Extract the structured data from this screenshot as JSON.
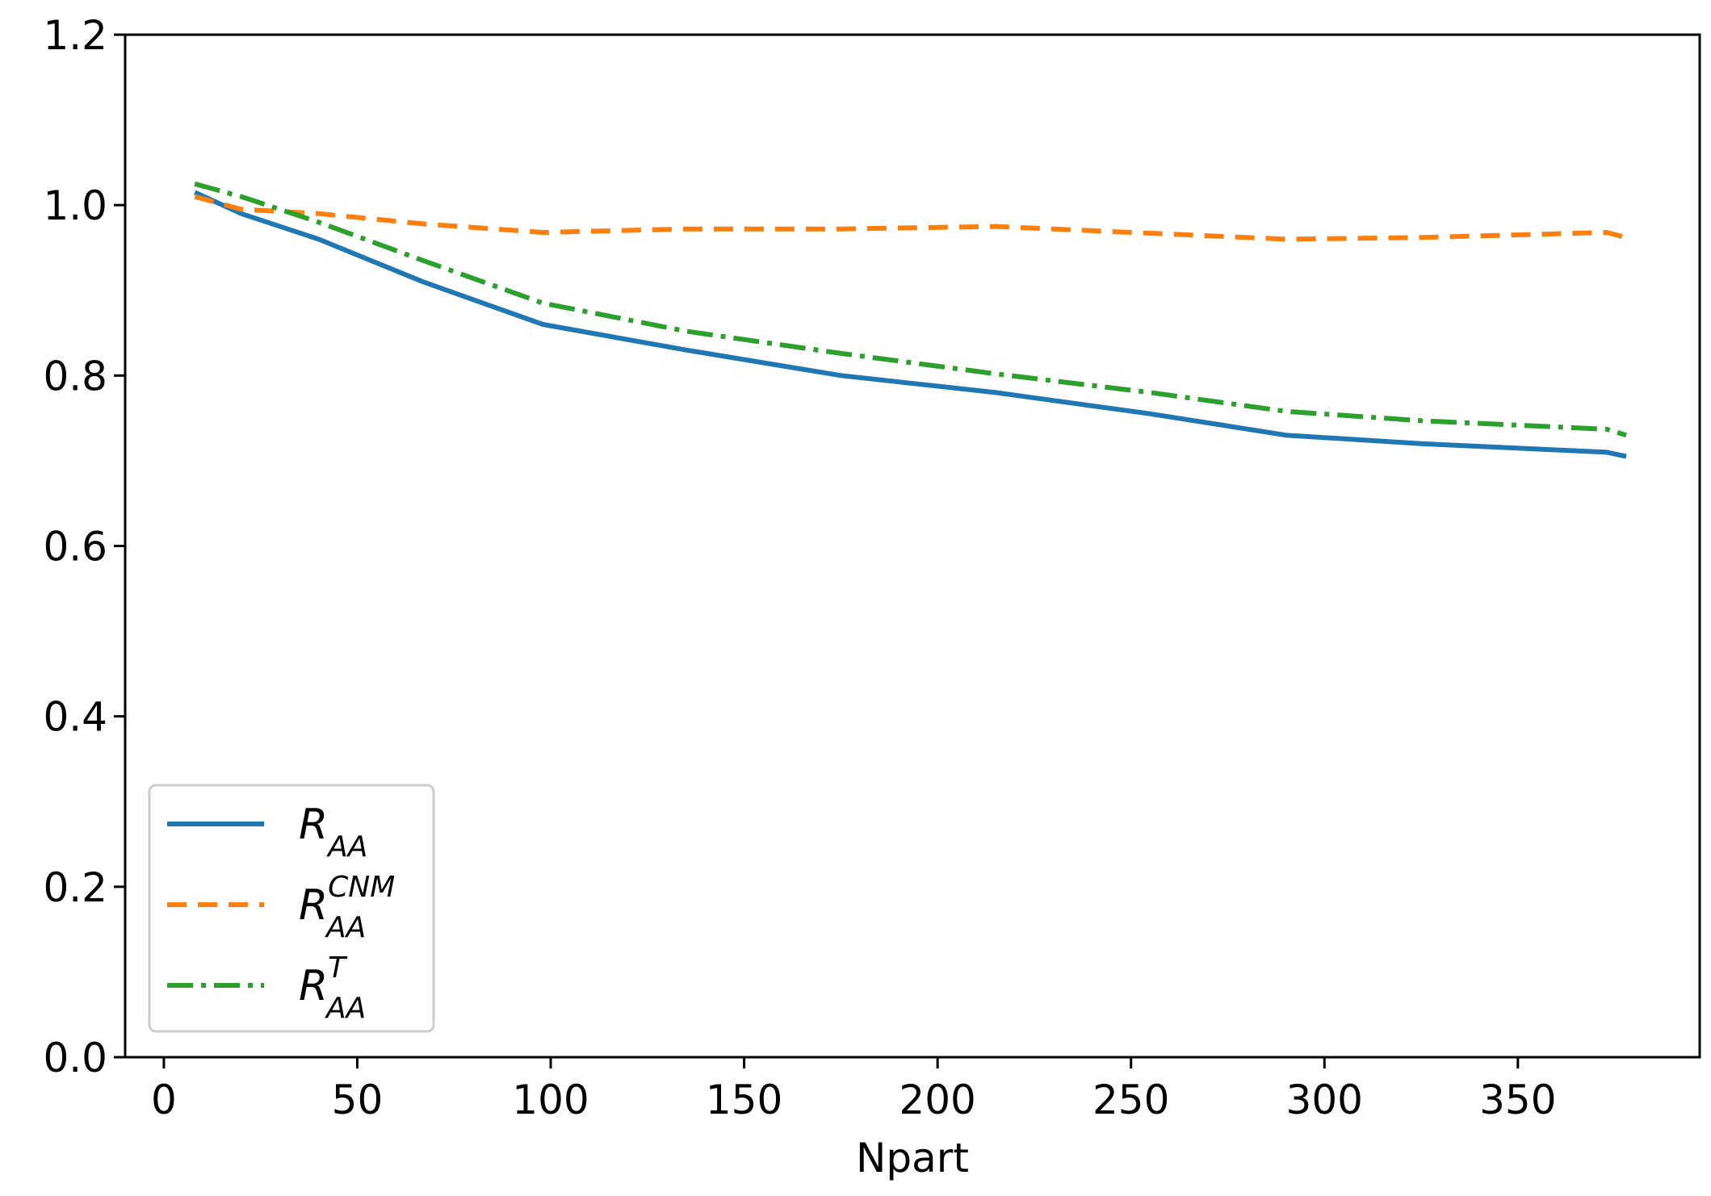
{
  "chart_data": {
    "type": "line",
    "title": "",
    "xlabel": "Npart",
    "ylabel": "",
    "xlim": [
      -10,
      397
    ],
    "ylim": [
      0.0,
      1.2
    ],
    "xticks": [
      0,
      50,
      100,
      150,
      200,
      250,
      300,
      350
    ],
    "xtick_labels": [
      "0",
      "50",
      "100",
      "150",
      "200",
      "250",
      "300",
      "350"
    ],
    "yticks": [
      0.0,
      0.2,
      0.4,
      0.6,
      0.8,
      1.0,
      1.2
    ],
    "ytick_labels": [
      "0.0",
      "0.2",
      "0.4",
      "0.6",
      "0.8",
      "1.0",
      "1.2"
    ],
    "grid": false,
    "legend_position": "lower-left",
    "series": [
      {
        "key": "raa",
        "name": "R_AA",
        "legend_main": "R",
        "legend_sub": "AA",
        "legend_sup": "",
        "color": "#1f77b4",
        "dash": "solid",
        "x": [
          8,
          20,
          40,
          67,
          98,
          135,
          175,
          215,
          255,
          290,
          325,
          373,
          378
        ],
        "y": [
          1.015,
          0.99,
          0.96,
          0.91,
          0.86,
          0.83,
          0.8,
          0.78,
          0.755,
          0.73,
          0.72,
          0.71,
          0.705
        ]
      },
      {
        "key": "raa_cnm",
        "name": "R_AA^CNM",
        "legend_main": "R",
        "legend_sub": "AA",
        "legend_sup": "CNM",
        "color": "#ff7f0e",
        "dash": "dashed",
        "x": [
          8,
          20,
          40,
          67,
          98,
          135,
          175,
          215,
          255,
          290,
          325,
          373,
          378
        ],
        "y": [
          1.01,
          0.995,
          0.99,
          0.978,
          0.968,
          0.972,
          0.972,
          0.975,
          0.967,
          0.96,
          0.962,
          0.968,
          0.962
        ]
      },
      {
        "key": "raa_t",
        "name": "R_AA^T",
        "legend_main": "R",
        "legend_sub": "AA",
        "legend_sup": "T",
        "color": "#2ca02c",
        "dash": "dashdot",
        "x": [
          8,
          20,
          40,
          67,
          98,
          135,
          175,
          215,
          255,
          290,
          325,
          373,
          378
        ],
        "y": [
          1.025,
          1.01,
          0.98,
          0.935,
          0.885,
          0.852,
          0.826,
          0.802,
          0.78,
          0.758,
          0.747,
          0.737,
          0.73
        ]
      }
    ]
  }
}
